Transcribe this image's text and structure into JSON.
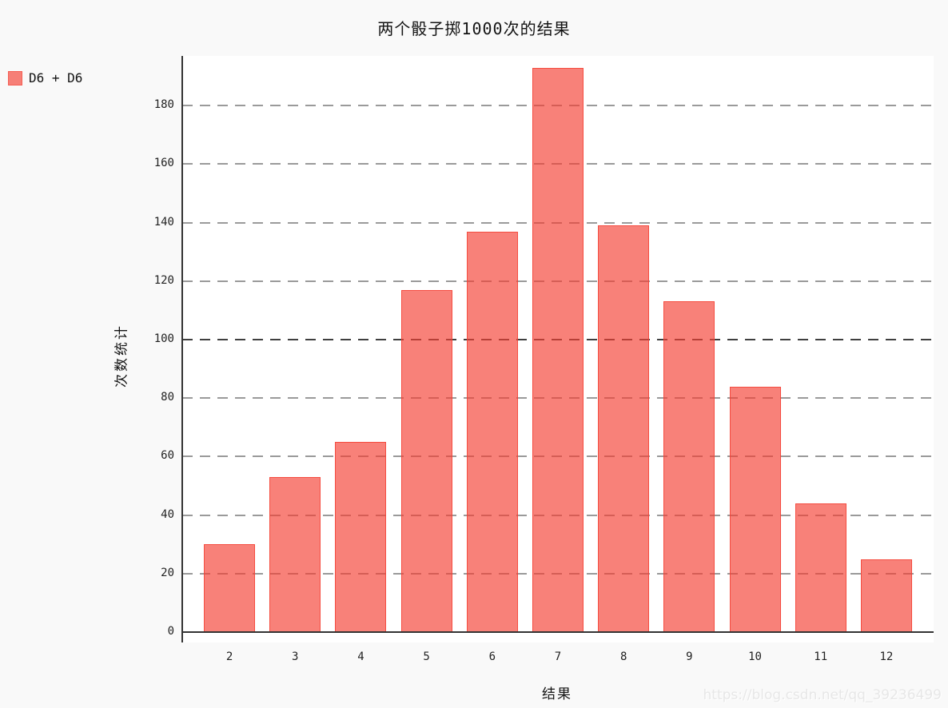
{
  "page": {
    "background": "#f9f9f9",
    "watermark": "https://blog.csdn.net/qq_39236499"
  },
  "chart_data": {
    "type": "bar",
    "title": "两个骰子掷1000次的结果",
    "xlabel": "结果",
    "ylabel": "次数统计",
    "categories": [
      "2",
      "3",
      "4",
      "5",
      "6",
      "7",
      "8",
      "9",
      "10",
      "11",
      "12"
    ],
    "series": [
      {
        "name": "D6 + D6",
        "values": [
          30,
          53,
          65,
          117,
          137,
          193,
          139,
          113,
          84,
          44,
          25
        ]
      }
    ],
    "total_rolls": 1000,
    "ylim": [
      0,
      197
    ],
    "yticks": [
      0,
      20,
      40,
      60,
      80,
      100,
      120,
      140,
      160,
      180
    ],
    "major_ytick": 100,
    "grid": "dashed",
    "legend_position": "top-left",
    "colors": {
      "bar_fill": "rgba(244,63,52,0.66)",
      "bar_stroke": "rgba(244,67,54,0.85)",
      "gridline": "#9a9a9a",
      "major_gridline": "#3f3f3f",
      "axis": "#333333",
      "plot_background": "#ffffff",
      "page_background": "#f9f9f9"
    }
  }
}
